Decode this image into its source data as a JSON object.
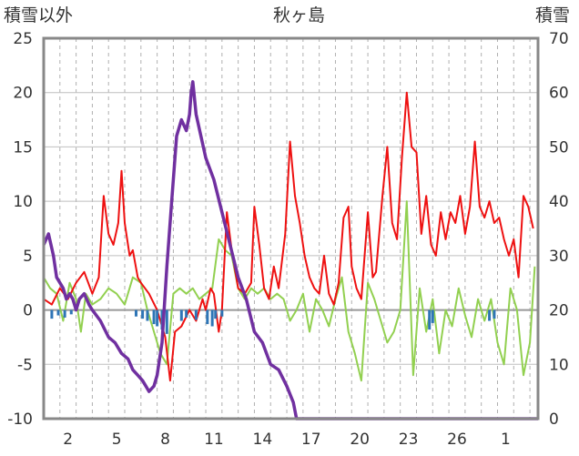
{
  "chart_data": {
    "type": "line",
    "title": "秋ヶ島",
    "ylabel_left": "積雪以外",
    "ylabel_right": "積雪",
    "ylim_left": [
      -10,
      25
    ],
    "ylim_right": [
      0,
      70
    ],
    "yticks_left": [
      -10,
      -5,
      0,
      5,
      10,
      15,
      20,
      25
    ],
    "yticks_right": [
      0,
      10,
      20,
      30,
      40,
      50,
      60,
      70
    ],
    "xticks": [
      "2",
      "5",
      "8",
      "11",
      "14",
      "17",
      "20",
      "23",
      "26",
      "1"
    ],
    "x_domain_days": [
      0,
      30.5
    ],
    "grid": {
      "horizontal": true,
      "vertical_dashed_daily": true
    },
    "series": [
      {
        "key": "red",
        "axis": "left",
        "color": "#ee1111",
        "points": [
          [
            0,
            1
          ],
          [
            0.5,
            0.5
          ],
          [
            1,
            2
          ],
          [
            1.5,
            1
          ],
          [
            2,
            2.5
          ],
          [
            2.5,
            3.5
          ],
          [
            3,
            1.5
          ],
          [
            3.4,
            3
          ],
          [
            3.7,
            10.5
          ],
          [
            4,
            7
          ],
          [
            4.3,
            6
          ],
          [
            4.6,
            8
          ],
          [
            4.8,
            12.8
          ],
          [
            5,
            8
          ],
          [
            5.3,
            5
          ],
          [
            5.5,
            5.5
          ],
          [
            5.8,
            3
          ],
          [
            6,
            2.5
          ],
          [
            6.5,
            1.5
          ],
          [
            7,
            0
          ],
          [
            7.5,
            -2.5
          ],
          [
            7.8,
            -6.5
          ],
          [
            8.1,
            -2
          ],
          [
            8.5,
            -1.5
          ],
          [
            9,
            0
          ],
          [
            9.4,
            -1
          ],
          [
            9.8,
            1
          ],
          [
            10,
            0
          ],
          [
            10.3,
            2
          ],
          [
            10.5,
            1.5
          ],
          [
            10.8,
            -2
          ],
          [
            11,
            0
          ],
          [
            11.3,
            9
          ],
          [
            11.6,
            5.5
          ],
          [
            12,
            2
          ],
          [
            12.4,
            1.5
          ],
          [
            12.8,
            2.5
          ],
          [
            13,
            9.5
          ],
          [
            13.3,
            6
          ],
          [
            13.6,
            2
          ],
          [
            13.9,
            1
          ],
          [
            14.2,
            4
          ],
          [
            14.5,
            2
          ],
          [
            14.9,
            7
          ],
          [
            15.2,
            15.5
          ],
          [
            15.5,
            10.5
          ],
          [
            15.8,
            8
          ],
          [
            16.1,
            5
          ],
          [
            16.4,
            3
          ],
          [
            16.7,
            2
          ],
          [
            17,
            1.5
          ],
          [
            17.3,
            5
          ],
          [
            17.6,
            1.5
          ],
          [
            17.9,
            0.5
          ],
          [
            18.2,
            2.5
          ],
          [
            18.5,
            8.5
          ],
          [
            18.8,
            9.5
          ],
          [
            19,
            4
          ],
          [
            19.3,
            2
          ],
          [
            19.6,
            1
          ],
          [
            20,
            9
          ],
          [
            20.3,
            3
          ],
          [
            20.5,
            3.5
          ],
          [
            20.9,
            10.5
          ],
          [
            21.2,
            15
          ],
          [
            21.5,
            8
          ],
          [
            21.8,
            6.5
          ],
          [
            22.1,
            14
          ],
          [
            22.4,
            20
          ],
          [
            22.7,
            15
          ],
          [
            23,
            14.5
          ],
          [
            23.3,
            7
          ],
          [
            23.6,
            10.5
          ],
          [
            23.9,
            6
          ],
          [
            24.2,
            5
          ],
          [
            24.5,
            9
          ],
          [
            24.8,
            6.5
          ],
          [
            25.1,
            9
          ],
          [
            25.4,
            8
          ],
          [
            25.7,
            10.5
          ],
          [
            26,
            7
          ],
          [
            26.3,
            9.5
          ],
          [
            26.6,
            15.5
          ],
          [
            26.9,
            9.5
          ],
          [
            27.2,
            8.5
          ],
          [
            27.5,
            10
          ],
          [
            27.8,
            8
          ],
          [
            28.1,
            8.5
          ],
          [
            28.4,
            6.5
          ],
          [
            28.7,
            5
          ],
          [
            29,
            6.5
          ],
          [
            29.3,
            3
          ],
          [
            29.6,
            10.5
          ],
          [
            29.9,
            9.5
          ],
          [
            30.2,
            7.5
          ]
        ]
      },
      {
        "key": "green",
        "axis": "left",
        "color": "#92d050",
        "points": [
          [
            0,
            3
          ],
          [
            0.4,
            2
          ],
          [
            0.8,
            1.5
          ],
          [
            1.2,
            -1
          ],
          [
            1.6,
            2.5
          ],
          [
            2,
            1
          ],
          [
            2.3,
            -2
          ],
          [
            2.6,
            1.5
          ],
          [
            3,
            0.5
          ],
          [
            3.5,
            1
          ],
          [
            4,
            2
          ],
          [
            4.5,
            1.5
          ],
          [
            5,
            0.5
          ],
          [
            5.5,
            3
          ],
          [
            6,
            2.5
          ],
          [
            6.4,
            0
          ],
          [
            6.8,
            -2
          ],
          [
            7.2,
            -4
          ],
          [
            7.6,
            -5
          ],
          [
            8,
            1.5
          ],
          [
            8.4,
            2
          ],
          [
            8.8,
            1.5
          ],
          [
            9.2,
            2
          ],
          [
            9.6,
            1
          ],
          [
            10,
            1.5
          ],
          [
            10.4,
            2
          ],
          [
            10.8,
            6.5
          ],
          [
            11.2,
            5.5
          ],
          [
            11.6,
            5
          ],
          [
            12,
            2
          ],
          [
            12.4,
            1
          ],
          [
            12.8,
            2
          ],
          [
            13.2,
            1.5
          ],
          [
            13.6,
            2
          ],
          [
            14,
            1
          ],
          [
            14.4,
            1.5
          ],
          [
            14.8,
            1
          ],
          [
            15.2,
            -1
          ],
          [
            15.6,
            0
          ],
          [
            16,
            1.5
          ],
          [
            16.4,
            -2
          ],
          [
            16.8,
            1
          ],
          [
            17.2,
            0
          ],
          [
            17.6,
            -1.5
          ],
          [
            18,
            1
          ],
          [
            18.4,
            3
          ],
          [
            18.8,
            -2
          ],
          [
            19.2,
            -4
          ],
          [
            19.6,
            -6.5
          ],
          [
            20,
            2.5
          ],
          [
            20.4,
            1
          ],
          [
            20.8,
            -1
          ],
          [
            21.2,
            -3
          ],
          [
            21.6,
            -2
          ],
          [
            22,
            0
          ],
          [
            22.4,
            10
          ],
          [
            22.8,
            -6
          ],
          [
            23.2,
            2
          ],
          [
            23.6,
            -2
          ],
          [
            24,
            1
          ],
          [
            24.4,
            -4
          ],
          [
            24.8,
            0
          ],
          [
            25.2,
            -1.5
          ],
          [
            25.6,
            2
          ],
          [
            26,
            -0.5
          ],
          [
            26.4,
            -2.5
          ],
          [
            26.8,
            1
          ],
          [
            27.2,
            -1
          ],
          [
            27.6,
            1
          ],
          [
            28,
            -3
          ],
          [
            28.4,
            -5
          ],
          [
            28.8,
            2
          ],
          [
            29.2,
            0
          ],
          [
            29.6,
            -6
          ],
          [
            30,
            -3
          ],
          [
            30.3,
            4
          ]
        ]
      },
      {
        "key": "blue",
        "axis": "left",
        "color": "#2e75b6",
        "style": "bars",
        "points": [
          [
            0.5,
            -0.8
          ],
          [
            0.9,
            -0.5
          ],
          [
            1.3,
            -0.7
          ],
          [
            1.7,
            -0.4
          ],
          [
            5.7,
            -0.6
          ],
          [
            6.1,
            -0.8
          ],
          [
            6.4,
            -1.0
          ],
          [
            6.8,
            -1.3
          ],
          [
            7.0,
            -1.5
          ],
          [
            7.3,
            -1.8
          ],
          [
            7.6,
            -2.2
          ],
          [
            8.5,
            -1.0
          ],
          [
            8.8,
            -0.7
          ],
          [
            9.4,
            -0.9
          ],
          [
            10.1,
            -1.3
          ],
          [
            10.4,
            -1.5
          ],
          [
            10.6,
            -0.8
          ],
          [
            11.0,
            -0.6
          ],
          [
            23.8,
            -1.8
          ],
          [
            24.0,
            -1.2
          ],
          [
            27.5,
            -1.0
          ],
          [
            27.8,
            -0.8
          ]
        ]
      },
      {
        "key": "purple",
        "axis": "right",
        "color": "#7030a0",
        "points": [
          [
            0,
            32
          ],
          [
            0.3,
            34
          ],
          [
            0.6,
            30
          ],
          [
            0.8,
            26
          ],
          [
            1.2,
            24
          ],
          [
            1.4,
            22
          ],
          [
            1.6,
            23
          ],
          [
            1.8,
            22
          ],
          [
            2,
            20
          ],
          [
            2.2,
            22
          ],
          [
            2.5,
            23
          ],
          [
            2.8,
            21
          ],
          [
            3,
            20
          ],
          [
            3.5,
            18
          ],
          [
            4,
            15
          ],
          [
            4.4,
            14
          ],
          [
            4.8,
            12
          ],
          [
            5.2,
            11
          ],
          [
            5.5,
            9
          ],
          [
            5.8,
            8
          ],
          [
            6.1,
            7
          ],
          [
            6.3,
            6
          ],
          [
            6.5,
            5
          ],
          [
            6.8,
            6
          ],
          [
            7,
            8
          ],
          [
            7.3,
            14
          ],
          [
            7.6,
            28
          ],
          [
            7.9,
            40
          ],
          [
            8.2,
            52
          ],
          [
            8.5,
            55
          ],
          [
            8.8,
            53
          ],
          [
            9,
            56
          ],
          [
            9.1,
            60
          ],
          [
            9.2,
            62
          ],
          [
            9.4,
            56
          ],
          [
            9.7,
            52
          ],
          [
            10,
            48
          ],
          [
            10.5,
            44
          ],
          [
            11,
            38
          ],
          [
            11.5,
            32
          ],
          [
            12,
            26
          ],
          [
            12.5,
            22
          ],
          [
            13,
            16
          ],
          [
            13.5,
            14
          ],
          [
            14,
            10
          ],
          [
            14.5,
            9
          ],
          [
            15,
            6
          ],
          [
            15.4,
            3
          ],
          [
            15.6,
            0
          ],
          [
            30.5,
            0
          ]
        ]
      }
    ]
  }
}
